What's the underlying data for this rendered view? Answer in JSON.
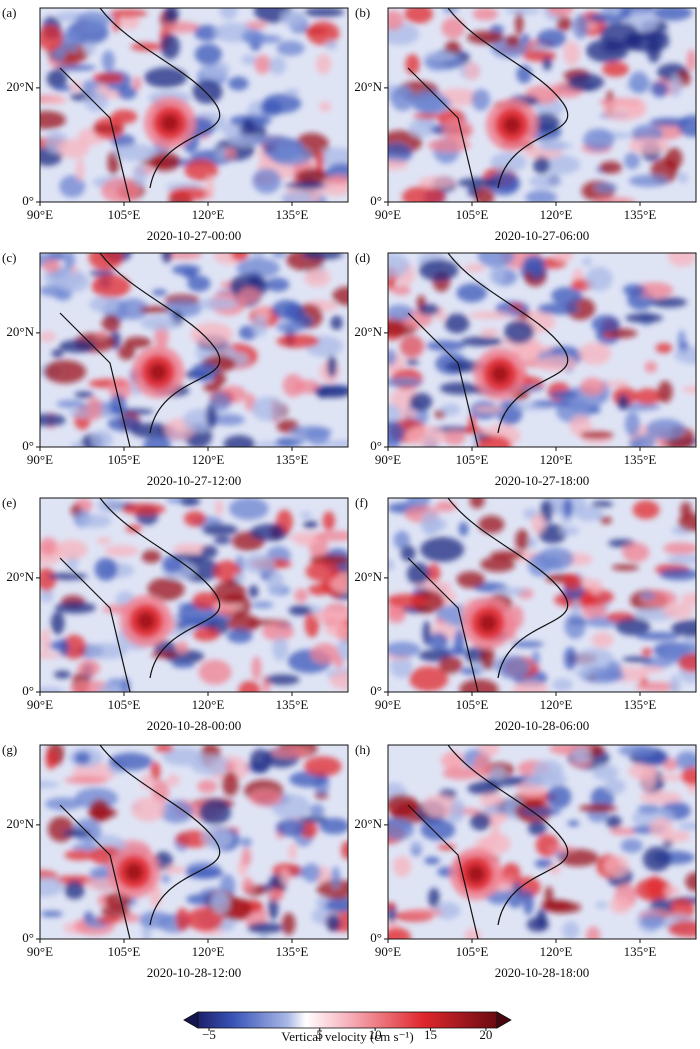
{
  "panels": [
    {
      "label": "(a)",
      "date": "2020-10-27-00:00"
    },
    {
      "label": "(b)",
      "date": "2020-10-27-06:00"
    },
    {
      "label": "(c)",
      "date": "2020-10-27-12:00"
    },
    {
      "label": "(d)",
      "date": "2020-10-27-18:00"
    },
    {
      "label": "(e)",
      "date": "2020-10-28-00:00"
    },
    {
      "label": "(f)",
      "date": "2020-10-28-06:00"
    },
    {
      "label": "(g)",
      "date": "2020-10-28-12:00"
    },
    {
      "label": "(h)",
      "date": "2020-10-28-18:00"
    }
  ],
  "axes": {
    "lon_range": [
      90,
      145
    ],
    "lat_range": [
      0,
      34
    ],
    "lon_ticks": [
      {
        "value": 90,
        "label": "90°E"
      },
      {
        "value": 105,
        "label": "105°E"
      },
      {
        "value": 120,
        "label": "120°E"
      },
      {
        "value": 135,
        "label": "135°E"
      }
    ],
    "lat_ticks": [
      {
        "value": 0,
        "label": "0°"
      },
      {
        "value": 20,
        "label": "20°N"
      }
    ]
  },
  "colorbar": {
    "range": [
      -6,
      21
    ],
    "ticks": [
      {
        "value": -5,
        "label": "−5"
      },
      5,
      10,
      15,
      20
    ],
    "label": "Vertical velocity (cm s⁻¹)"
  }
}
